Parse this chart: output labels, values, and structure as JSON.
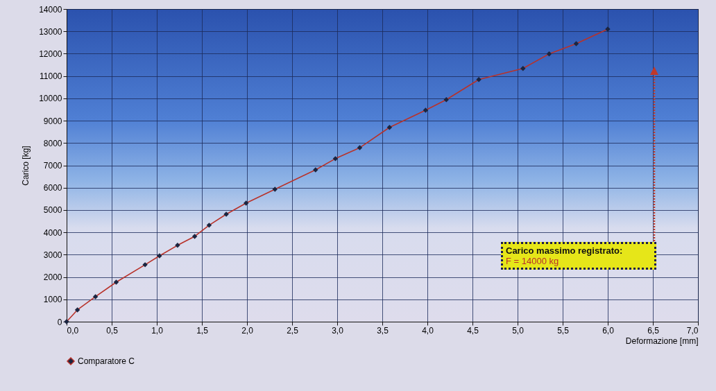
{
  "chart_data": {
    "type": "line",
    "xlabel": "Deformazione [mm]",
    "ylabel": "Carico [kg]",
    "x": [
      0,
      0.12,
      0.32,
      0.55,
      0.87,
      1.03,
      1.23,
      1.42,
      1.58,
      1.77,
      1.99,
      2.31,
      2.76,
      2.98,
      3.25,
      3.58,
      3.98,
      4.21,
      4.57,
      5.06,
      5.35,
      5.65,
      6.0
    ],
    "series": [
      {
        "name": "Comparatore C",
        "color": "#b8322a",
        "values": [
          0,
          530,
          1120,
          1770,
          2550,
          2950,
          3420,
          3820,
          4320,
          4810,
          5310,
          5930,
          6800,
          7300,
          7790,
          8700,
          9470,
          9940,
          10840,
          11340,
          11990,
          12450,
          13100
        ]
      }
    ],
    "xlim": [
      0,
      7
    ],
    "xticks": [
      {
        "value": 0,
        "label": "0,0"
      },
      {
        "value": 0.5,
        "label": "0,5"
      },
      {
        "value": 1,
        "label": "1,0"
      },
      {
        "value": 1.5,
        "label": "1,5"
      },
      {
        "value": 2,
        "label": "2,0"
      },
      {
        "value": 2.5,
        "label": "2,5"
      },
      {
        "value": 3,
        "label": "3,0"
      },
      {
        "value": 3.5,
        "label": "3,5"
      },
      {
        "value": 4,
        "label": "4,0"
      },
      {
        "value": 4.5,
        "label": "4,5"
      },
      {
        "value": 5,
        "label": "5,0"
      },
      {
        "value": 5.5,
        "label": "5,5"
      },
      {
        "value": 6,
        "label": "6,0"
      },
      {
        "value": 6.5,
        "label": "6,5"
      },
      {
        "value": 7,
        "label": "7,0"
      }
    ],
    "ylim": [
      0,
      14000
    ],
    "yticks": [
      0,
      1000,
      2000,
      3000,
      4000,
      5000,
      6000,
      7000,
      8000,
      9000,
      10000,
      11000,
      12000,
      13000,
      14000
    ],
    "grid": true,
    "legend": "bottom",
    "marker": "diamond",
    "line_style": "solid",
    "annotations": [
      "Carico massimo registrato:",
      "F = 14000 kg"
    ]
  }
}
